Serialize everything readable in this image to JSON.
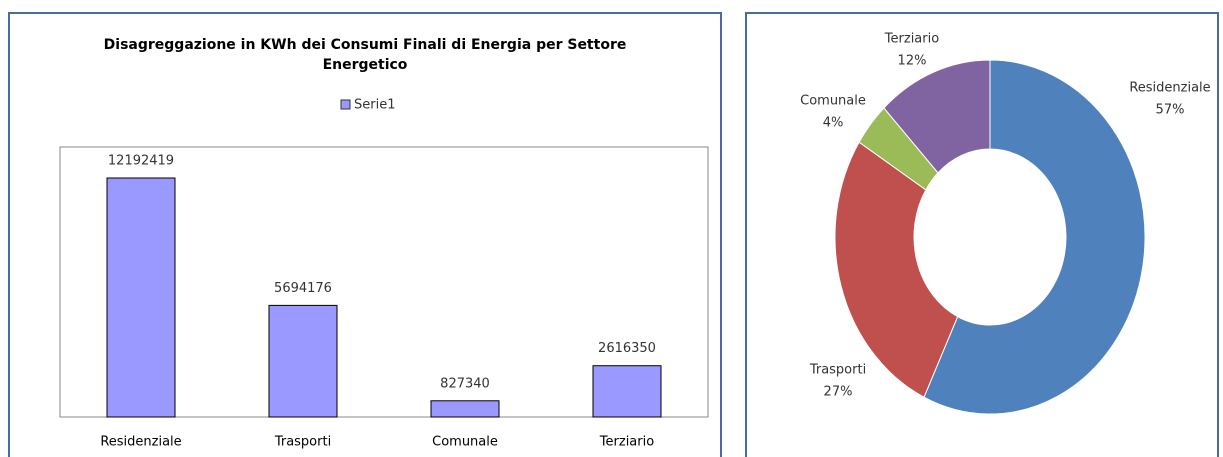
{
  "chart_data": [
    {
      "type": "bar",
      "title": "Disagreggazione in KWh dei Consumi Finali di Energia per Settore Energetico",
      "categories": [
        "Residenziale",
        "Trasporti",
        "Comunale",
        "Terziario"
      ],
      "series": [
        {
          "name": "Serie1",
          "color": "#9999ff",
          "values": [
            12192419,
            5694176,
            827340,
            2616350
          ]
        }
      ]
    },
    {
      "type": "pie",
      "categories": [
        "Residenziale",
        "Trasporti",
        "Comunale",
        "Terziario"
      ],
      "values": [
        57,
        27,
        4,
        12
      ],
      "value_labels": [
        "57%",
        "27%",
        "4%",
        "12%"
      ],
      "colors": [
        "#4f81bd",
        "#c0504d",
        "#9bbb59",
        "#8064a2"
      ]
    }
  ]
}
